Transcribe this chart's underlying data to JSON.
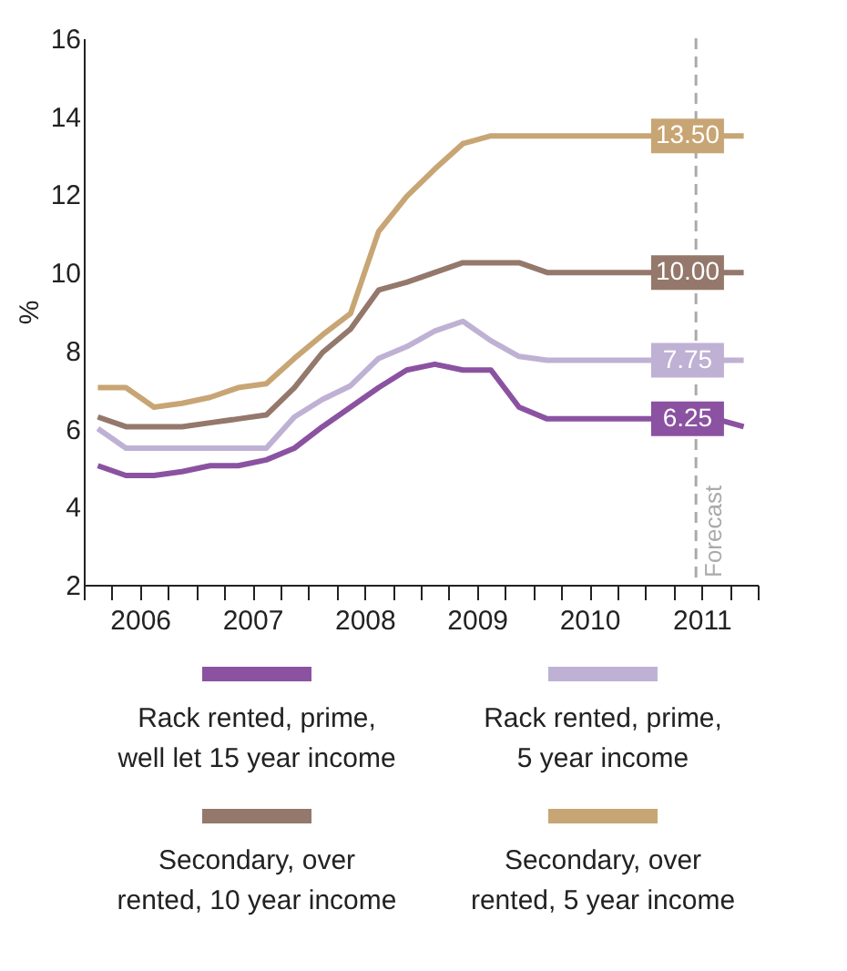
{
  "chart_data": {
    "type": "line",
    "ylabel": "%",
    "x": [
      2006.125,
      2006.375,
      2006.625,
      2006.875,
      2007.125,
      2007.375,
      2007.625,
      2007.875,
      2008.125,
      2008.375,
      2008.625,
      2008.875,
      2009.125,
      2009.375,
      2009.625,
      2009.875,
      2010.125,
      2010.375,
      2010.625,
      2010.875,
      2011.125,
      2011.375,
      2011.625,
      2011.875
    ],
    "series": [
      {
        "name": "Rack rented, prime, well let 15 year income",
        "color": "#8b52a1",
        "values": [
          5.05,
          4.8,
          4.8,
          4.9,
          5.05,
          5.05,
          5.2,
          5.5,
          6.05,
          6.55,
          7.05,
          7.5,
          7.65,
          7.5,
          7.5,
          6.55,
          6.25,
          6.25,
          6.25,
          6.25,
          6.25,
          6.25,
          6.25,
          6.05
        ],
        "value_labels": [
          null,
          null,
          null,
          null,
          null,
          null,
          null,
          null,
          null,
          null,
          null,
          null,
          null,
          null,
          null,
          null,
          null,
          null,
          null,
          null,
          null,
          "6.25",
          null,
          null
        ]
      },
      {
        "name": "Rack rented, prime, 5 year income",
        "color": "#bfb1d4",
        "values": [
          6.0,
          5.5,
          5.5,
          5.5,
          5.5,
          5.5,
          5.5,
          6.3,
          6.75,
          7.1,
          7.8,
          8.1,
          8.5,
          8.75,
          8.25,
          7.85,
          7.75,
          7.75,
          7.75,
          7.75,
          7.75,
          7.75,
          7.75,
          7.75
        ],
        "value_labels": [
          null,
          null,
          null,
          null,
          null,
          null,
          null,
          null,
          null,
          null,
          null,
          null,
          null,
          null,
          null,
          null,
          null,
          null,
          null,
          null,
          null,
          "7.75",
          null,
          null
        ]
      },
      {
        "name": "Secondary, over rented, 10 year income",
        "color": "#94786b",
        "values": [
          6.3,
          6.05,
          6.05,
          6.05,
          6.15,
          6.25,
          6.35,
          7.05,
          7.95,
          8.55,
          9.55,
          9.75,
          10.0,
          10.25,
          10.25,
          10.25,
          10.0,
          10.0,
          10.0,
          10.0,
          10.0,
          10.0,
          10.0,
          10.0
        ],
        "value_labels": [
          null,
          null,
          null,
          null,
          null,
          null,
          null,
          null,
          null,
          null,
          null,
          null,
          null,
          null,
          null,
          null,
          null,
          null,
          null,
          null,
          null,
          "10.00",
          null,
          null
        ]
      },
      {
        "name": "Secondary, over rented, 5 year income",
        "color": "#c8a574",
        "values": [
          7.05,
          7.05,
          6.55,
          6.65,
          6.8,
          7.05,
          7.15,
          7.8,
          8.4,
          8.95,
          11.05,
          11.95,
          12.65,
          13.3,
          13.5,
          13.5,
          13.5,
          13.5,
          13.5,
          13.5,
          13.5,
          13.5,
          13.5,
          13.5
        ],
        "value_labels": [
          null,
          null,
          null,
          null,
          null,
          null,
          null,
          null,
          null,
          null,
          null,
          null,
          null,
          null,
          null,
          null,
          null,
          null,
          null,
          null,
          null,
          "13.50",
          null,
          null
        ]
      }
    ],
    "xlim": [
      2006,
      2012
    ],
    "xticks": [
      {
        "value": 2006,
        "label": null
      },
      {
        "value": 2006.25,
        "label": null
      },
      {
        "value": 2006.5,
        "label": "2006"
      },
      {
        "value": 2006.75,
        "label": null
      },
      {
        "value": 2007,
        "label": null
      },
      {
        "value": 2007.25,
        "label": null
      },
      {
        "value": 2007.5,
        "label": "2007"
      },
      {
        "value": 2007.75,
        "label": null
      },
      {
        "value": 2008,
        "label": null
      },
      {
        "value": 2008.25,
        "label": null
      },
      {
        "value": 2008.5,
        "label": "2008"
      },
      {
        "value": 2008.75,
        "label": null
      },
      {
        "value": 2009,
        "label": null
      },
      {
        "value": 2009.25,
        "label": null
      },
      {
        "value": 2009.5,
        "label": "2009"
      },
      {
        "value": 2009.75,
        "label": null
      },
      {
        "value": 2010,
        "label": null
      },
      {
        "value": 2010.25,
        "label": null
      },
      {
        "value": 2010.5,
        "label": "2010"
      },
      {
        "value": 2010.75,
        "label": null
      },
      {
        "value": 2011,
        "label": null
      },
      {
        "value": 2011.25,
        "label": null
      },
      {
        "value": 2011.5,
        "label": "2011"
      },
      {
        "value": 2011.75,
        "label": null
      },
      {
        "value": 2012,
        "label": null
      }
    ],
    "ylim": [
      2,
      16
    ],
    "yticks": [
      2,
      4,
      6,
      8,
      10,
      12,
      14,
      16
    ],
    "ref_lines": [
      {
        "axis": "x",
        "value": 2011.45,
        "label": "Forecast",
        "color": "#aaaaaa",
        "line_style": "dashed"
      }
    ],
    "grid": false,
    "legend": "bottom",
    "line_style": "solid",
    "marker": "none"
  }
}
